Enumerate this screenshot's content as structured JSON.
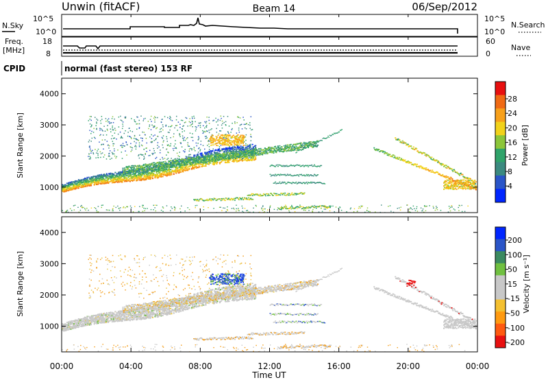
{
  "header": {
    "station": "Unwin (fitACF)",
    "beam": "Beam 14",
    "date": "06/Sep/2012"
  },
  "nsky_panel": {
    "left_label": "N.Sky",
    "right_label": "N.Search",
    "left_ticks": [
      "10^5",
      "10^0"
    ],
    "right_ticks": [
      "10^5",
      "10^0"
    ]
  },
  "freq_panel": {
    "left_label_line1": "Freq.",
    "left_label_line2": "[MHz]",
    "right_label": "Nave",
    "left_ticks": [
      "18",
      "8"
    ],
    "right_ticks": [
      "60",
      "0"
    ]
  },
  "cpid": {
    "label": "CPID",
    "value": "normal (fast stereo) 153 RF"
  },
  "power_panel": {
    "ylabel": "Slant Range [km]",
    "yticks": [
      "4000",
      "3000",
      "2000",
      "1000"
    ],
    "colorbar_label": "Power [dB]",
    "colorbar_ticks": [
      "28",
      "24",
      "20",
      "16",
      "12",
      "8",
      "4"
    ]
  },
  "velocity_panel": {
    "ylabel": "Slant Range [km]",
    "yticks": [
      "4000",
      "3000",
      "2000",
      "1000"
    ],
    "colorbar_label": "Velocity [m s⁻¹]",
    "colorbar_ticks": [
      "200",
      "100",
      "50",
      "15",
      "-15",
      "-50",
      "-100",
      "-200"
    ]
  },
  "xaxis": {
    "label": "Time UT",
    "ticks": [
      "00:00",
      "04:00",
      "08:00",
      "12:00",
      "16:00",
      "20:00",
      "00:00"
    ]
  },
  "colors": {
    "power_scale": [
      "#0026ff",
      "#2a55c8",
      "#3b8a80",
      "#2fa36a",
      "#8cc63a",
      "#f2d21a",
      "#f7a01a",
      "#f06a14",
      "#e81010"
    ],
    "velocity_scale": [
      "#e81010",
      "#ff5a10",
      "#ff9a10",
      "#f4c030",
      "#c8c8c8",
      "#c8c8c8",
      "#70c040",
      "#3b8a60",
      "#2a55c8",
      "#0026ff"
    ]
  },
  "chart_data": [
    {
      "type": "heatmap",
      "title": "Power",
      "xlabel": "Time UT",
      "ylabel": "Slant Range [km]",
      "xlim": [
        0,
        24
      ],
      "ylim": [
        180,
        4500
      ],
      "colorbar": {
        "label": "Power [dB]",
        "range": [
          0,
          32
        ]
      },
      "features": [
        {
          "desc": "main band",
          "t_start": 0.0,
          "t_end": 11.0,
          "range_start": 900,
          "range_end": 2000,
          "power": 24
        },
        {
          "desc": "scattered upper",
          "t_start": 1.5,
          "t_end": 10.5,
          "range_start": 2000,
          "range_end": 3300,
          "power": 8
        },
        {
          "desc": "mid band",
          "t_start": 9.0,
          "t_end": 14.5,
          "range_start": 1700,
          "range_end": 2300,
          "power": 14
        },
        {
          "desc": "late arc",
          "t_start": 18.0,
          "t_end": 23.8,
          "range_start": 950,
          "range_end": 2400,
          "power": 20
        }
      ]
    },
    {
      "type": "heatmap",
      "title": "Velocity",
      "xlabel": "Time UT",
      "ylabel": "Slant Range [km]",
      "xlim": [
        0,
        24
      ],
      "ylim": [
        180,
        4500
      ],
      "colorbar": {
        "label": "Velocity [m s⁻¹]",
        "range": [
          -200,
          200
        ]
      },
      "features": [
        {
          "desc": "ground scatter band",
          "t_start": 0.0,
          "t_end": 14.5,
          "range_start": 900,
          "range_end": 2300,
          "velocity": 0
        },
        {
          "desc": "negative patches",
          "t_start": 4.0,
          "t_end": 10.5,
          "range_start": 1800,
          "range_end": 2700,
          "velocity": -50
        },
        {
          "desc": "positive patch",
          "t_start": 9.0,
          "t_end": 10.0,
          "range_start": 2500,
          "range_end": 2750,
          "velocity": 200
        },
        {
          "desc": "late arc",
          "t_start": 18.0,
          "t_end": 23.8,
          "range_start": 950,
          "range_end": 2400,
          "velocity": 0
        }
      ]
    }
  ]
}
